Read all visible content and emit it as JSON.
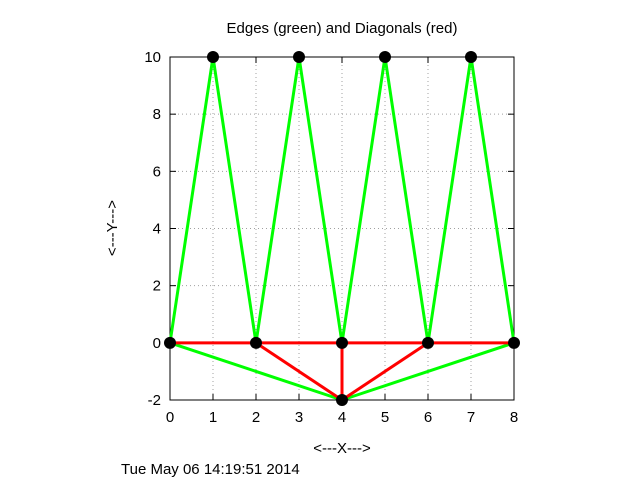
{
  "chart_data": {
    "type": "line",
    "title": "Edges (green) and Diagonals (red)",
    "xlabel": "<---X--->",
    "ylabel": "<---Y--->",
    "xlim": [
      0,
      8
    ],
    "ylim": [
      -2,
      10
    ],
    "xticks": [
      0,
      1,
      2,
      3,
      4,
      5,
      6,
      7,
      8
    ],
    "yticks": [
      -2,
      0,
      2,
      4,
      6,
      8,
      10
    ],
    "grid": true,
    "colors": {
      "edges": "#00ff00",
      "diagonals": "#ff0000",
      "points": "#000000"
    },
    "edges": [
      [
        [
          0,
          0
        ],
        [
          1,
          10
        ]
      ],
      [
        [
          1,
          10
        ],
        [
          2,
          0
        ]
      ],
      [
        [
          2,
          0
        ],
        [
          3,
          10
        ]
      ],
      [
        [
          3,
          10
        ],
        [
          4,
          0
        ]
      ],
      [
        [
          4,
          0
        ],
        [
          5,
          10
        ]
      ],
      [
        [
          5,
          10
        ],
        [
          6,
          0
        ]
      ],
      [
        [
          6,
          0
        ],
        [
          7,
          10
        ]
      ],
      [
        [
          7,
          10
        ],
        [
          8,
          0
        ]
      ],
      [
        [
          0,
          0
        ],
        [
          4,
          -2
        ]
      ],
      [
        [
          4,
          -2
        ],
        [
          8,
          0
        ]
      ]
    ],
    "diagonals": [
      [
        [
          0,
          0
        ],
        [
          8,
          0
        ]
      ],
      [
        [
          2,
          0
        ],
        [
          4,
          -2
        ]
      ],
      [
        [
          4,
          0
        ],
        [
          4,
          -2
        ]
      ],
      [
        [
          6,
          0
        ],
        [
          4,
          -2
        ]
      ]
    ],
    "points": [
      [
        0,
        0
      ],
      [
        1,
        10
      ],
      [
        2,
        0
      ],
      [
        3,
        10
      ],
      [
        4,
        0
      ],
      [
        5,
        10
      ],
      [
        6,
        0
      ],
      [
        7,
        10
      ],
      [
        8,
        0
      ],
      [
        4,
        -2
      ]
    ]
  },
  "footer": {
    "timestamp": "Tue May 06 14:19:51 2014"
  }
}
